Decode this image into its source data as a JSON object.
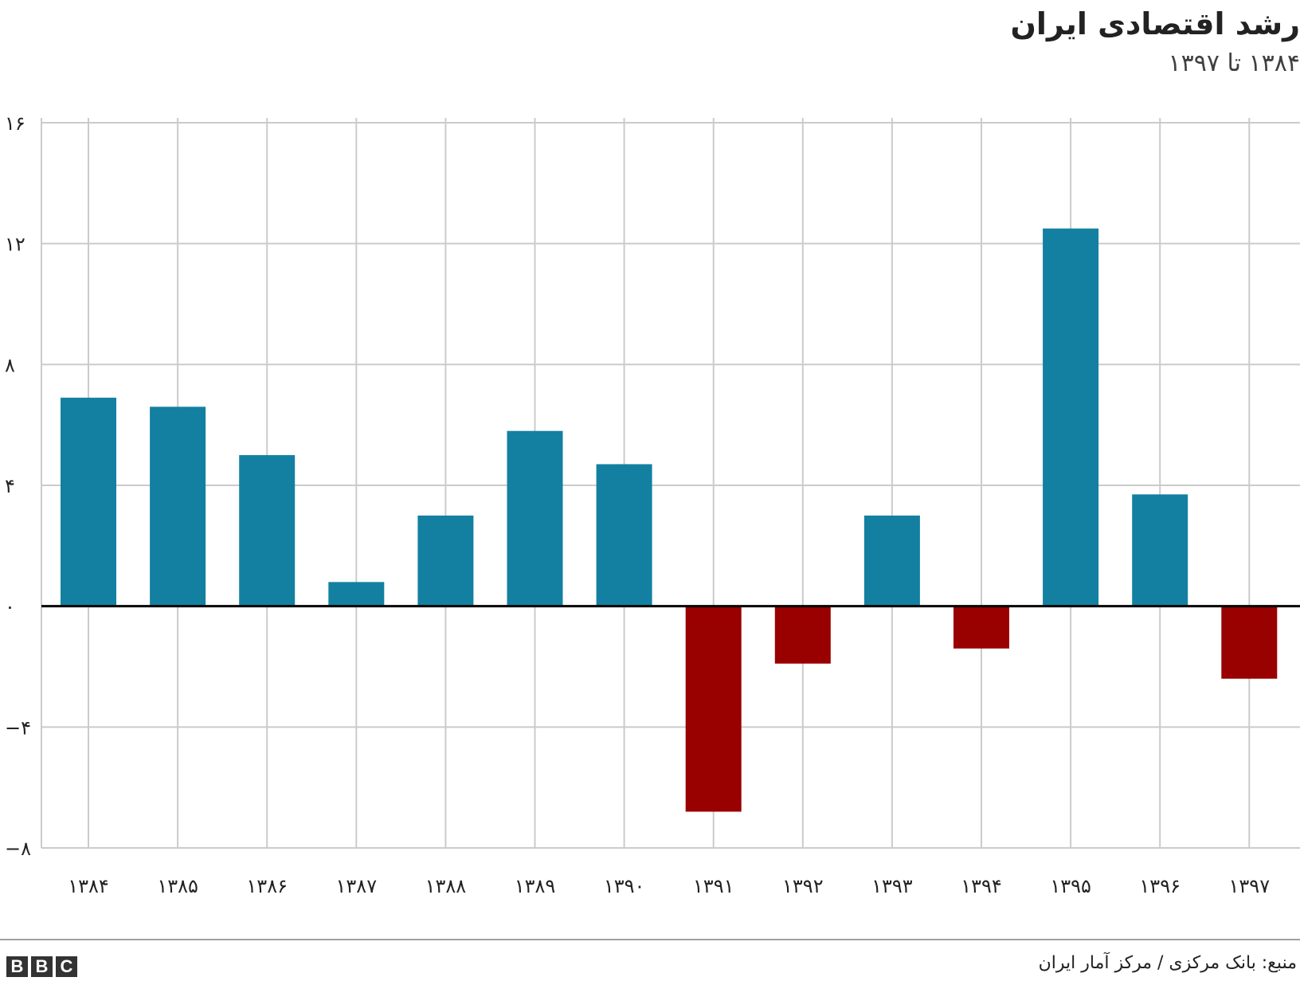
{
  "chart_data": {
    "type": "bar",
    "title": "رشد اقتصادی ایران",
    "subtitle": "۱۳۸۴ تا ۱۳۹۷",
    "categories": [
      "۱۳۸۴",
      "۱۳۸۵",
      "۱۳۸۶",
      "۱۳۸۷",
      "۱۳۸۸",
      "۱۳۸۹",
      "۱۳۹۰",
      "۱۳۹۱",
      "۱۳۹۲",
      "۱۳۹۳",
      "۱۳۹۴",
      "۱۳۹۵",
      "۱۳۹۶",
      "۱۳۹۷"
    ],
    "values": [
      6.9,
      6.6,
      5.0,
      0.8,
      3.0,
      5.8,
      4.7,
      -6.8,
      -1.9,
      3.0,
      -1.4,
      12.5,
      3.7,
      -2.4
    ],
    "ylim": [
      -8,
      16
    ],
    "yticks": [
      -8,
      -4,
      0,
      4,
      8,
      12,
      16
    ],
    "ytick_labels": [
      "−۸",
      "−۴",
      "۰",
      "۴",
      "۸",
      "۱۲",
      "۱۶"
    ],
    "xlabel": "",
    "ylabel": "",
    "grid": true,
    "colors": {
      "positive": "#1380a1",
      "negative": "#990000",
      "grid": "#cbcbcb",
      "zero": "#000000"
    }
  },
  "footer": {
    "source": "منبع: بانک مرکزی / مرکز آمار ایران",
    "logo": [
      "B",
      "B",
      "C"
    ]
  }
}
